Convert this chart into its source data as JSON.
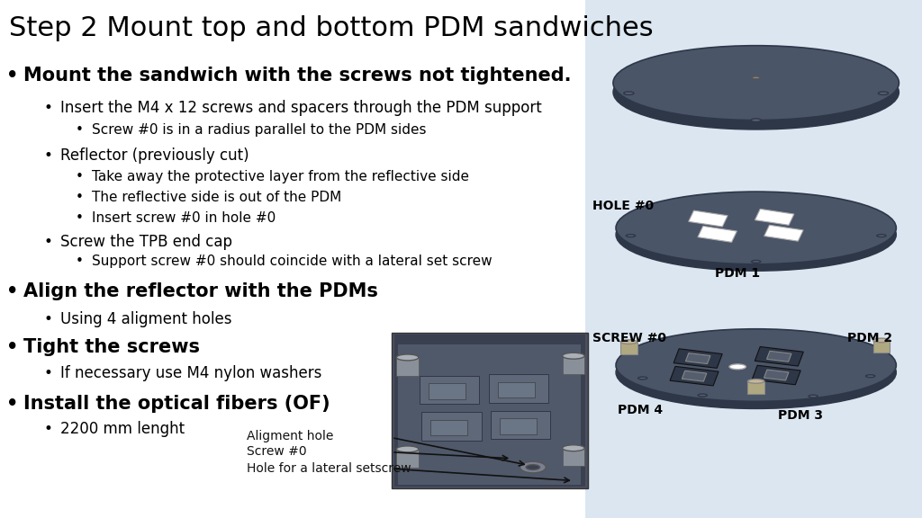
{
  "title": "Step 2 Mount top and bottom PDM sandwiches",
  "title_fontsize": 22,
  "background_color": "#ffffff",
  "text_color": "#000000",
  "bullet_items": [
    {
      "level": 1,
      "text": "Mount the sandwich with the screws not tightened.",
      "bold": true,
      "fontsize": 15
    },
    {
      "level": 2,
      "text": "Insert the M4 x 12 screws and spacers through the PDM support",
      "bold": false,
      "fontsize": 12
    },
    {
      "level": 3,
      "text": "Screw #0 is in a radius parallel to the PDM sides",
      "bold": false,
      "fontsize": 11
    },
    {
      "level": 2,
      "text": "Reflector (previously cut)",
      "bold": false,
      "fontsize": 12
    },
    {
      "level": 3,
      "text": "Take away the protective layer from the reflective side",
      "bold": false,
      "fontsize": 11
    },
    {
      "level": 3,
      "text": "The reflective side is out of the PDM",
      "bold": false,
      "fontsize": 11
    },
    {
      "level": 3,
      "text": "Insert screw #0 in hole #0",
      "bold": false,
      "fontsize": 11
    },
    {
      "level": 2,
      "text": "Screw the TPB end cap",
      "bold": false,
      "fontsize": 12
    },
    {
      "level": 3,
      "text": "Support screw #0 should coincide with a lateral set screw",
      "bold": false,
      "fontsize": 11
    },
    {
      "level": 1,
      "text": "Align the reflector with the PDMs",
      "bold": true,
      "fontsize": 15
    },
    {
      "level": 2,
      "text": "Using 4 aligment holes",
      "bold": false,
      "fontsize": 12
    },
    {
      "level": 1,
      "text": "Tight the screws",
      "bold": true,
      "fontsize": 15
    },
    {
      "level": 2,
      "text": "If necessary use M4 nylon washers",
      "bold": false,
      "fontsize": 12
    },
    {
      "level": 1,
      "text": "Install the optical fibers (OF)",
      "bold": true,
      "fontsize": 15
    },
    {
      "level": 2,
      "text": "2200 mm lenght",
      "bold": false,
      "fontsize": 12
    }
  ],
  "right_panel_bg": "#dce6f1",
  "diagram_labels": {
    "hole0": "HOLE #0",
    "pdm1": "PDM 1",
    "pdm2": "PDM 2",
    "pdm3": "PDM 3",
    "pdm4": "PDM 4",
    "screw0": "SCREW #0"
  },
  "bottom_photo_labels": [
    {
      "text": "Aligment hole"
    },
    {
      "text": "Screw #0"
    },
    {
      "text": "Hole for a lateral setscrew"
    }
  ],
  "disk_color": "#4a5568",
  "disk_edge_color": "#2d3748",
  "component_color": "#3a4050"
}
